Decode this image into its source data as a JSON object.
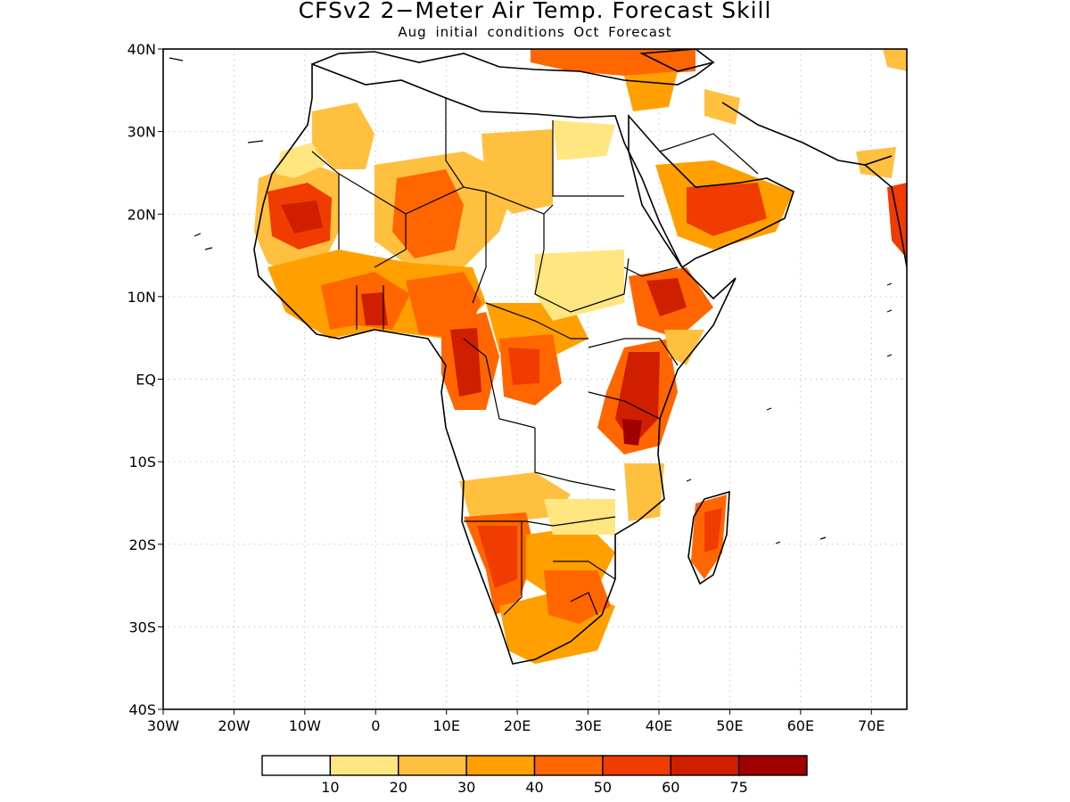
{
  "title": "CFSv2 2−Meter Air Temp. Forecast Skill",
  "subtitle": "Aug initial conditions  Oct Forecast",
  "map": {
    "lon_ticks": [
      "30W",
      "20W",
      "10W",
      "0",
      "10E",
      "20E",
      "30E",
      "40E",
      "50E",
      "60E",
      "70E"
    ],
    "lat_ticks": [
      "40N",
      "30N",
      "20N",
      "10N",
      "EQ",
      "10S",
      "20S",
      "30S",
      "40S"
    ],
    "region": "Africa",
    "gridlines": "dotted"
  },
  "colorbar": {
    "labels": [
      "10",
      "20",
      "30",
      "40",
      "50",
      "60",
      "75"
    ],
    "colors": [
      "#ffffff",
      "#ffe680",
      "#ffc040",
      "#ffa000",
      "#ff6600",
      "#f03c00",
      "#d01e00",
      "#a00000"
    ]
  },
  "palette": {
    "c20": "#ffe680",
    "c30": "#ffc040",
    "c40": "#ffa000",
    "c50": "#ff6600",
    "c60": "#f03c00",
    "c75": "#d01e00",
    "c100": "#a00000"
  }
}
